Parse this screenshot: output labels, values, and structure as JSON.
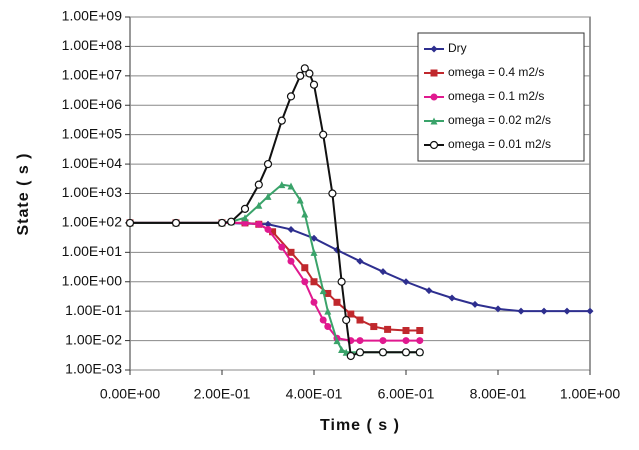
{
  "chart_data": {
    "type": "line",
    "x_label": "Time ( s )",
    "y_label": "State ( s )",
    "y_scale": "log",
    "grid": true,
    "legend_position": "upper right",
    "xlim": [
      0,
      1
    ],
    "xticks": [
      {
        "value": 0,
        "label": "0.00E+00"
      },
      {
        "value": 0.2,
        "label": "2.00E-01"
      },
      {
        "value": 0.4,
        "label": "4.00E-01"
      },
      {
        "value": 0.6,
        "label": "6.00E-01"
      },
      {
        "value": 0.8,
        "label": "8.00E-01"
      },
      {
        "value": 1,
        "label": "1.00E+00"
      }
    ],
    "ylim": [
      0.001,
      1000000000
    ],
    "yticks": [
      {
        "value": 0.001,
        "label": "1.00E-03"
      },
      {
        "value": 0.01,
        "label": "1.00E-02"
      },
      {
        "value": 0.1,
        "label": "1.00E-01"
      },
      {
        "value": 1,
        "label": "1.00E+00"
      },
      {
        "value": 10,
        "label": "1.00E+01"
      },
      {
        "value": 100,
        "label": "1.00E+02"
      },
      {
        "value": 1000,
        "label": "1.00E+03"
      },
      {
        "value": 10000,
        "label": "1.00E+04"
      },
      {
        "value": 100000,
        "label": "1.00E+05"
      },
      {
        "value": 1000000,
        "label": "1.00E+06"
      },
      {
        "value": 10000000,
        "label": "1.00E+07"
      },
      {
        "value": 100000000,
        "label": "1.00E+08"
      },
      {
        "value": 1000000000,
        "label": "1.00E+09"
      }
    ],
    "series": [
      {
        "name": "Dry",
        "color": "#2e2f8f",
        "marker": "diamond",
        "x": [
          0,
          0.1,
          0.2,
          0.3,
          0.35,
          0.4,
          0.45,
          0.5,
          0.55,
          0.6,
          0.65,
          0.7,
          0.75,
          0.8,
          0.85,
          0.9,
          0.95,
          1
        ],
        "values": [
          100,
          100,
          100,
          90,
          60,
          30,
          12,
          5,
          2.2,
          1,
          0.5,
          0.28,
          0.17,
          0.12,
          0.1,
          0.1,
          0.1,
          0.1
        ]
      },
      {
        "name": "omega = 0.4 m2/s",
        "color": "#c0282d",
        "marker": "square",
        "x": [
          0,
          0.1,
          0.2,
          0.25,
          0.28,
          0.31,
          0.35,
          0.38,
          0.4,
          0.43,
          0.45,
          0.48,
          0.5,
          0.53,
          0.56,
          0.6,
          0.63
        ],
        "values": [
          100,
          100,
          100,
          100,
          90,
          50,
          10,
          3,
          1,
          0.4,
          0.2,
          0.08,
          0.05,
          0.03,
          0.024,
          0.022,
          0.022
        ]
      },
      {
        "name": "omega = 0.1 m2/s",
        "color": "#e0198f",
        "marker": "circle",
        "x": [
          0,
          0.1,
          0.2,
          0.25,
          0.28,
          0.3,
          0.33,
          0.35,
          0.38,
          0.4,
          0.42,
          0.43,
          0.45,
          0.48,
          0.5,
          0.55,
          0.6,
          0.63
        ],
        "values": [
          100,
          100,
          100,
          100,
          90,
          60,
          15,
          5,
          1,
          0.2,
          0.05,
          0.03,
          0.012,
          0.01,
          0.01,
          0.01,
          0.01,
          0.01
        ]
      },
      {
        "name": "omega = 0.02 m2/s",
        "color": "#3aa36a",
        "marker": "triangle",
        "x": [
          0,
          0.1,
          0.2,
          0.22,
          0.25,
          0.28,
          0.3,
          0.33,
          0.35,
          0.37,
          0.38,
          0.4,
          0.42,
          0.43,
          0.45,
          0.46,
          0.47,
          0.5,
          0.55,
          0.6,
          0.63
        ],
        "values": [
          100,
          100,
          100,
          110,
          150,
          400,
          800,
          2000,
          1800,
          600,
          200,
          10,
          0.5,
          0.1,
          0.01,
          0.005,
          0.004,
          0.004,
          0.004,
          0.004,
          0.004
        ]
      },
      {
        "name": "omega = 0.01 m2/s",
        "color": "#111111",
        "marker": "open-circle",
        "x": [
          0,
          0.1,
          0.2,
          0.22,
          0.25,
          0.28,
          0.3,
          0.33,
          0.35,
          0.37,
          0.38,
          0.39,
          0.4,
          0.42,
          0.44,
          0.46,
          0.47,
          0.48,
          0.5,
          0.55,
          0.6,
          0.63
        ],
        "values": [
          100,
          100,
          100,
          110,
          300,
          2000,
          10000,
          300000,
          2000000,
          10000000,
          18000000,
          12000000,
          5000000,
          100000,
          1000,
          1,
          0.05,
          0.003,
          0.004,
          0.004,
          0.004,
          0.004
        ]
      }
    ]
  }
}
